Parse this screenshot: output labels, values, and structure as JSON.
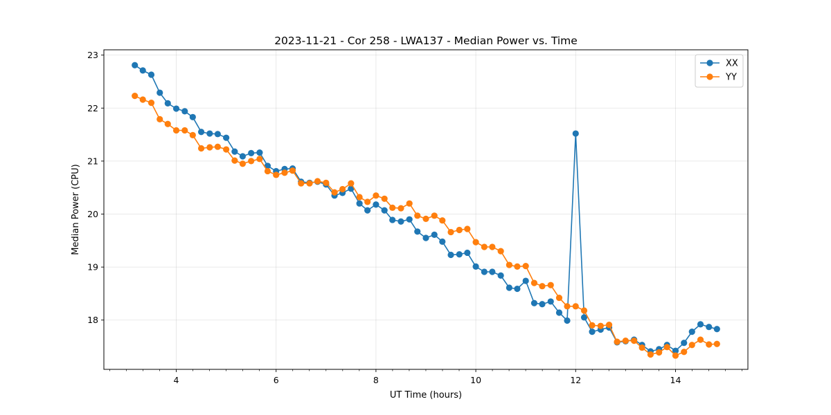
{
  "chart_data": {
    "type": "line",
    "title": "2023-11-21 - Cor 258 - LWA137 - Median Power vs. Time",
    "xlabel": "UT Time (hours)",
    "ylabel": "Median Power (CPU)",
    "xlim": [
      2.55,
      15.45
    ],
    "ylim": [
      17.07,
      23.1
    ],
    "x_ticks": [
      4,
      6,
      8,
      10,
      12,
      14
    ],
    "x_minor_step": 0.3333,
    "y_ticks": [
      18,
      19,
      20,
      21,
      22,
      23
    ],
    "grid": true,
    "legend_position": "top-right",
    "x": [
      3.17,
      3.33,
      3.5,
      3.67,
      3.83,
      4.0,
      4.17,
      4.33,
      4.5,
      4.67,
      4.83,
      5.0,
      5.17,
      5.33,
      5.5,
      5.67,
      5.83,
      6.0,
      6.17,
      6.33,
      6.5,
      6.67,
      6.83,
      7.0,
      7.17,
      7.33,
      7.5,
      7.67,
      7.83,
      8.0,
      8.17,
      8.33,
      8.5,
      8.67,
      8.83,
      9.0,
      9.17,
      9.33,
      9.5,
      9.67,
      9.83,
      10.0,
      10.17,
      10.33,
      10.5,
      10.67,
      10.83,
      11.0,
      11.17,
      11.33,
      11.5,
      11.67,
      11.83,
      12.0,
      12.17,
      12.33,
      12.5,
      12.67,
      12.83,
      13.0,
      13.17,
      13.33,
      13.5,
      13.67,
      13.83,
      14.0,
      14.17,
      14.33,
      14.5,
      14.67,
      14.83
    ],
    "series": [
      {
        "name": "XX",
        "color": "#1f77b4",
        "values": [
          22.81,
          22.71,
          22.63,
          22.29,
          22.09,
          21.99,
          21.94,
          21.83,
          21.55,
          21.52,
          21.51,
          21.44,
          21.18,
          21.09,
          21.15,
          21.16,
          20.91,
          20.81,
          20.85,
          20.86,
          20.61,
          20.59,
          20.61,
          20.56,
          20.35,
          20.4,
          20.48,
          20.2,
          20.07,
          20.18,
          20.07,
          19.89,
          19.86,
          19.9,
          19.67,
          19.55,
          19.61,
          19.48,
          19.23,
          19.24,
          19.27,
          19.01,
          18.91,
          18.91,
          18.84,
          18.61,
          18.59,
          18.74,
          18.32,
          18.3,
          18.35,
          18.14,
          17.99,
          21.52,
          18.05,
          17.78,
          17.82,
          17.86,
          17.58,
          17.6,
          17.63,
          17.53,
          17.41,
          17.45,
          17.53,
          17.42,
          17.57,
          17.78,
          17.92,
          17.87,
          17.83
        ]
      },
      {
        "name": "YY",
        "color": "#ff7f0e",
        "values": [
          22.23,
          22.16,
          22.1,
          21.79,
          21.7,
          21.58,
          21.58,
          21.49,
          21.24,
          21.26,
          21.27,
          21.22,
          21.01,
          20.95,
          21.0,
          21.04,
          20.81,
          20.74,
          20.78,
          20.82,
          20.58,
          20.58,
          20.62,
          20.59,
          20.41,
          20.47,
          20.58,
          20.32,
          20.23,
          20.35,
          20.29,
          20.12,
          20.11,
          20.2,
          19.97,
          19.91,
          19.97,
          19.88,
          19.66,
          19.7,
          19.72,
          19.47,
          19.38,
          19.38,
          19.3,
          19.04,
          19.01,
          19.02,
          18.7,
          18.64,
          18.66,
          18.42,
          18.26,
          18.26,
          18.18,
          17.9,
          17.89,
          17.91,
          17.59,
          17.61,
          17.61,
          17.48,
          17.35,
          17.39,
          17.49,
          17.33,
          17.4,
          17.53,
          17.63,
          17.54,
          17.55
        ]
      }
    ]
  }
}
